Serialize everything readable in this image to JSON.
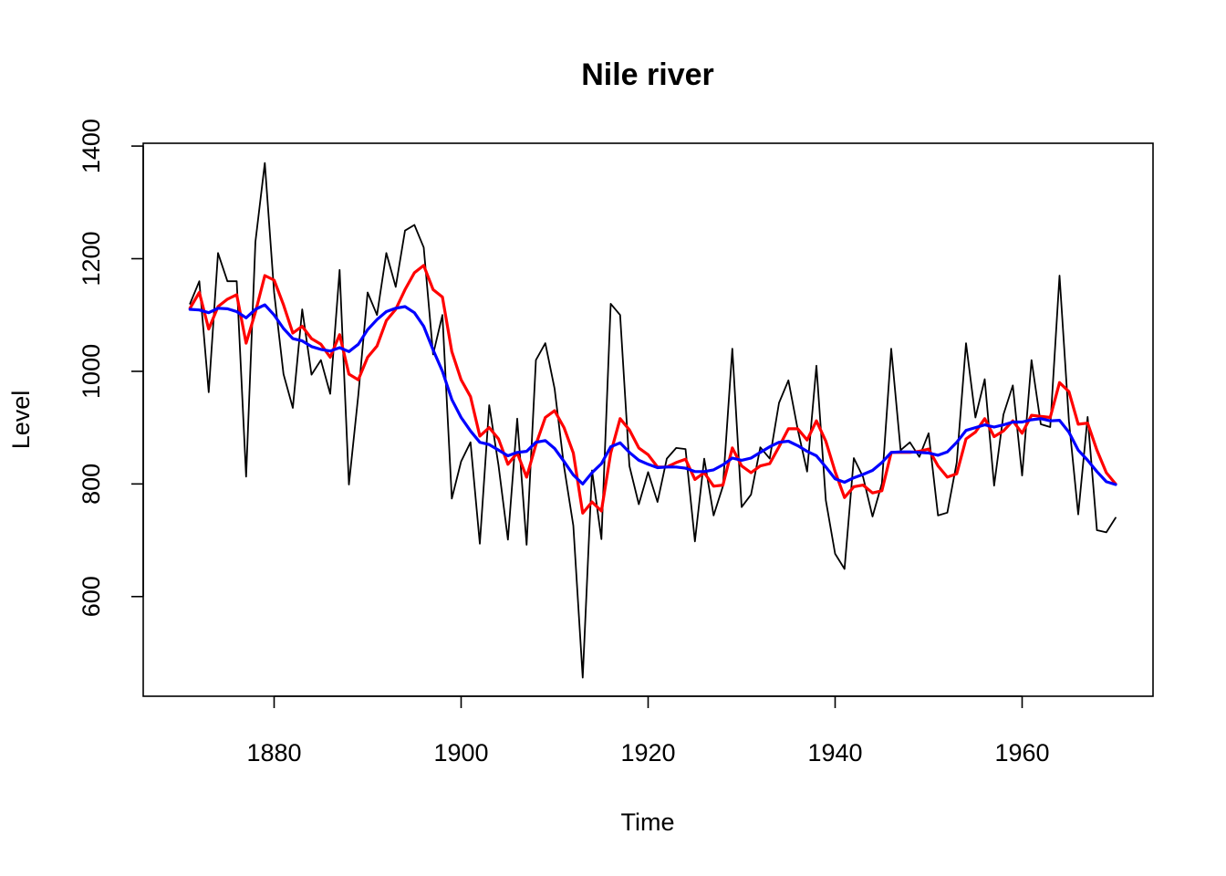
{
  "chart_data": {
    "type": "line",
    "title": "Nile river",
    "xlabel": "Time",
    "ylabel": "Level",
    "xlim": [
      1866.0,
      1974.0
    ],
    "ylim": [
      423.0,
      1405.0
    ],
    "x_ticks": [
      1880,
      1900,
      1920,
      1940,
      1960
    ],
    "y_ticks": [
      600,
      800,
      1000,
      1200,
      1400
    ],
    "grid": false,
    "legend": "none",
    "x": [
      1871,
      1872,
      1873,
      1874,
      1875,
      1876,
      1877,
      1878,
      1879,
      1880,
      1881,
      1882,
      1883,
      1884,
      1885,
      1886,
      1887,
      1888,
      1889,
      1890,
      1891,
      1892,
      1893,
      1894,
      1895,
      1896,
      1897,
      1898,
      1899,
      1900,
      1901,
      1902,
      1903,
      1904,
      1905,
      1906,
      1907,
      1908,
      1909,
      1910,
      1911,
      1912,
      1913,
      1914,
      1915,
      1916,
      1917,
      1918,
      1919,
      1920,
      1921,
      1922,
      1923,
      1924,
      1925,
      1926,
      1927,
      1928,
      1929,
      1930,
      1931,
      1932,
      1933,
      1934,
      1935,
      1936,
      1937,
      1938,
      1939,
      1940,
      1941,
      1942,
      1943,
      1944,
      1945,
      1946,
      1947,
      1948,
      1949,
      1950,
      1951,
      1952,
      1953,
      1954,
      1955,
      1956,
      1957,
      1958,
      1959,
      1960,
      1961,
      1962,
      1963,
      1964,
      1965,
      1966,
      1967,
      1968,
      1969,
      1970
    ],
    "series": [
      {
        "color": "#000000",
        "width": 1.8,
        "values": [
          1120,
          1160,
          963,
          1210,
          1160,
          1160,
          813,
          1230,
          1370,
          1140,
          995,
          935,
          1110,
          994,
          1020,
          960,
          1180,
          799,
          958,
          1140,
          1100,
          1210,
          1150,
          1250,
          1260,
          1220,
          1030,
          1100,
          774,
          840,
          874,
          694,
          940,
          833,
          701,
          916,
          692,
          1020,
          1050,
          969,
          831,
          726,
          456,
          824,
          702,
          1120,
          1100,
          832,
          764,
          821,
          768,
          845,
          864,
          862,
          698,
          845,
          744,
          796,
          1040,
          759,
          781,
          865,
          845,
          944,
          984,
          897,
          822,
          1010,
          771,
          676,
          649,
          846,
          812,
          742,
          801,
          1040,
          860,
          874,
          848,
          890,
          744,
          749,
          838,
          1050,
          918,
          986,
          797,
          923,
          975,
          815,
          1020,
          906,
          901,
          1170,
          912,
          746,
          919,
          718,
          714,
          740
        ]
      },
      {
        "color": "#ff0000",
        "width": 3.2,
        "values": [
          1112,
          1140,
          1075,
          1115,
          1128,
          1136,
          1050,
          1105,
          1170,
          1162,
          1118,
          1068,
          1080,
          1058,
          1048,
          1025,
          1065,
          995,
          985,
          1025,
          1045,
          1090,
          1110,
          1145,
          1175,
          1188,
          1145,
          1132,
          1035,
          985,
          955,
          885,
          900,
          880,
          835,
          855,
          812,
          870,
          918,
          930,
          900,
          855,
          748,
          768,
          752,
          855,
          916,
          896,
          864,
          852,
          830,
          830,
          838,
          844,
          808,
          820,
          796,
          798,
          864,
          832,
          820,
          832,
          836,
          866,
          898,
          898,
          878,
          912,
          876,
          822,
          776,
          795,
          798,
          784,
          788,
          856,
          856,
          856,
          858,
          862,
          832,
          812,
          818,
          880,
          892,
          916,
          884,
          894,
          912,
          890,
          922,
          920,
          918,
          980,
          964,
          906,
          908,
          860,
          820,
          800
        ]
      },
      {
        "color": "#0000ff",
        "width": 3.2,
        "values": [
          1110,
          1109,
          1104,
          1112,
          1111,
          1106,
          1095,
          1110,
          1118,
          1100,
          1076,
          1058,
          1054,
          1044,
          1039,
          1036,
          1042,
          1035,
          1048,
          1074,
          1092,
          1106,
          1112,
          1115,
          1104,
          1080,
          1038,
          1000,
          950,
          918,
          894,
          874,
          870,
          860,
          850,
          856,
          858,
          874,
          877,
          863,
          840,
          816,
          800,
          820,
          836,
          866,
          873,
          856,
          842,
          835,
          829,
          830,
          830,
          828,
          822,
          822,
          825,
          834,
          846,
          842,
          846,
          856,
          866,
          874,
          876,
          868,
          858,
          850,
          830,
          809,
          803,
          811,
          817,
          824,
          838,
          856,
          857,
          857,
          856,
          855,
          851,
          857,
          874,
          895,
          900,
          905,
          901,
          905,
          910,
          910,
          914,
          916,
          912,
          913,
          892,
          860,
          842,
          822,
          804,
          799
        ]
      }
    ]
  }
}
